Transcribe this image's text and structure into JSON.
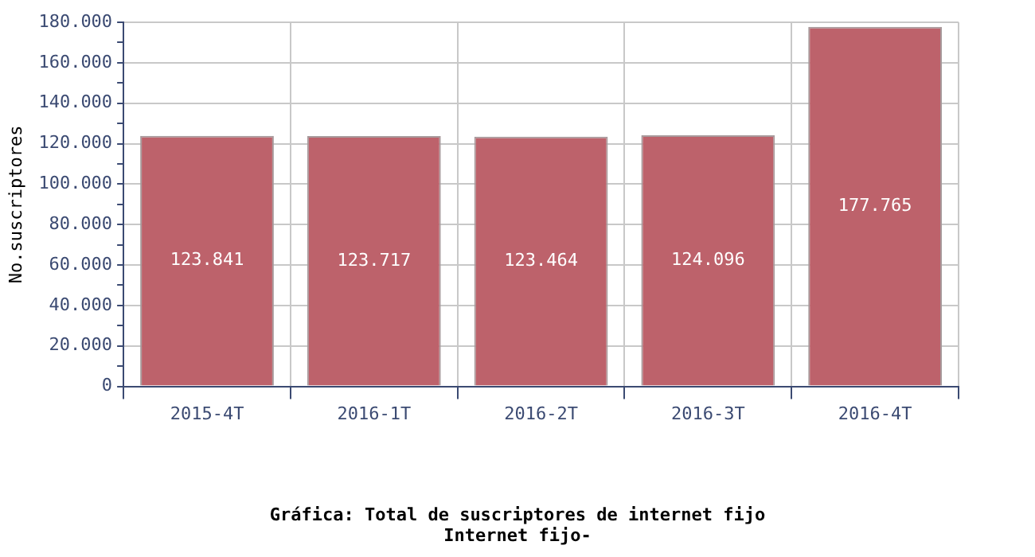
{
  "chart_data": {
    "type": "bar",
    "title": "Gráfica: Total de suscriptores de internet fijo",
    "subtitle": "Internet fijo-",
    "ylabel": "No.suscriptores",
    "categories": [
      "2015-4T",
      "2016-1T",
      "2016-2T",
      "2016-3T",
      "2016-4T"
    ],
    "values": [
      123841,
      123717,
      123464,
      124096,
      177765
    ],
    "value_labels": [
      "123.841",
      "123.717",
      "123.464",
      "124.096",
      "177.765"
    ],
    "color": "#bd626b",
    "ylim": [
      0,
      180000
    ],
    "yticks": [
      0,
      {
        "value": 10000,
        "label": null
      },
      {
        "value": 20000,
        "label": "20.000"
      },
      {
        "value": 30000,
        "label": null
      },
      {
        "value": 40000,
        "label": "40.000"
      },
      {
        "value": 50000,
        "label": null
      },
      {
        "value": 60000,
        "label": "60.000"
      },
      {
        "value": 70000,
        "label": null
      },
      {
        "value": 80000,
        "label": "80.000"
      },
      {
        "value": 90000,
        "label": null
      },
      {
        "value": 100000,
        "label": "100.000"
      },
      {
        "value": 110000,
        "label": null
      },
      {
        "value": 120000,
        "label": "120.000"
      },
      {
        "value": 130000,
        "label": null
      },
      {
        "value": 140000,
        "label": "140.000"
      },
      {
        "value": 150000,
        "label": null
      },
      {
        "value": 160000,
        "label": "160.000"
      },
      {
        "value": 170000,
        "label": null
      },
      {
        "value": 180000,
        "label": "180.000"
      }
    ],
    "grid": true,
    "legend": false
  }
}
